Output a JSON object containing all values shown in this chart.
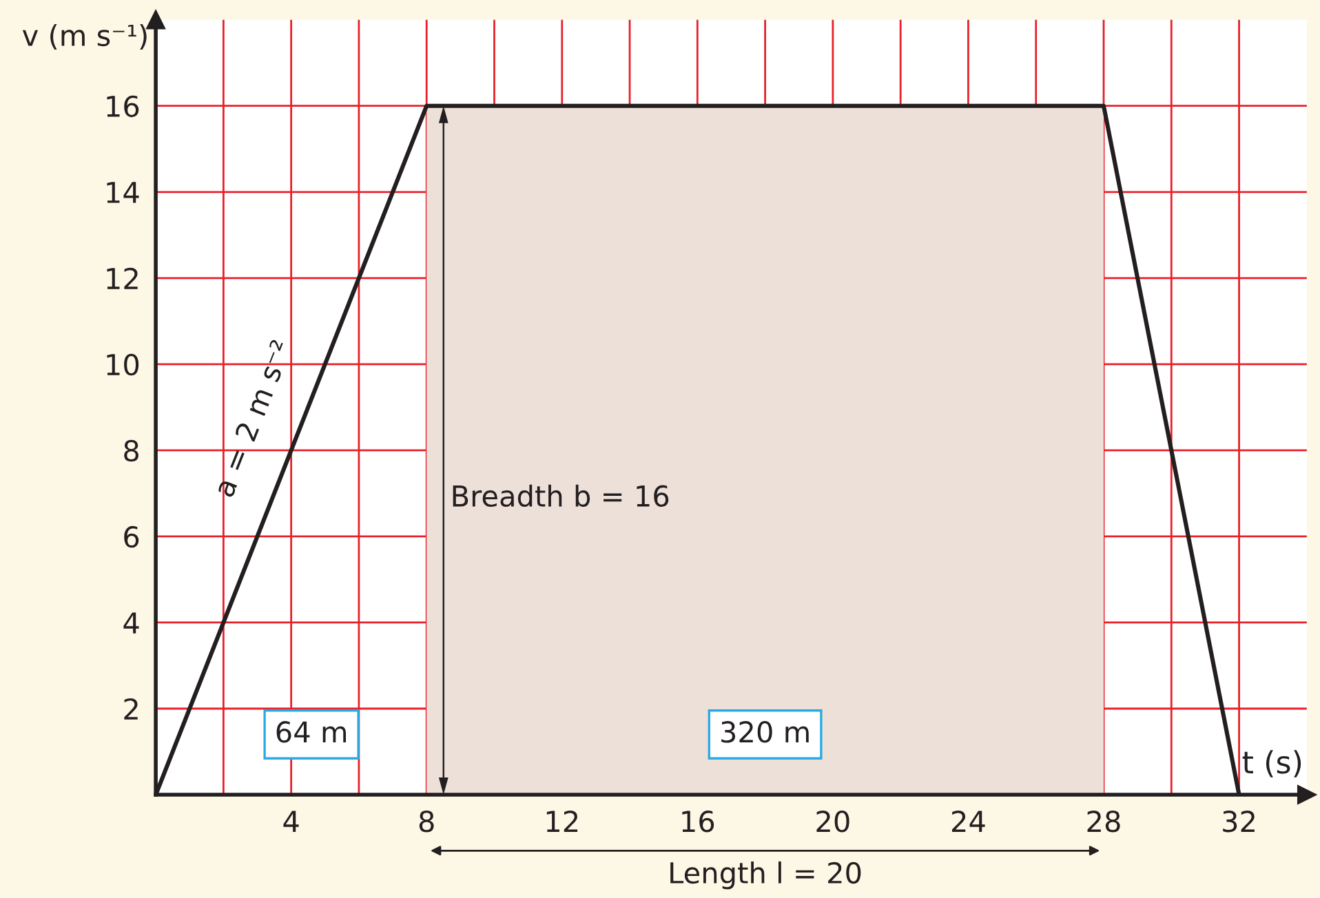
{
  "chart_data": {
    "type": "line",
    "xlabel": "t (s)",
    "ylabel": "v (m s⁻¹)",
    "xlim": [
      0,
      34
    ],
    "ylim": [
      0,
      18
    ],
    "xticks": [
      {
        "value": 2,
        "label": null
      },
      4,
      {
        "value": 6,
        "label": null
      },
      8,
      {
        "value": 10,
        "label": null
      },
      12,
      {
        "value": 14,
        "label": null
      },
      16,
      {
        "value": 18,
        "label": null
      },
      20,
      {
        "value": 22,
        "label": null
      },
      24,
      {
        "value": 26,
        "label": null
      },
      28,
      {
        "value": 30,
        "label": null
      },
      32
    ],
    "yticks": [
      2,
      4,
      6,
      8,
      10,
      12,
      14,
      16
    ],
    "grid": true,
    "series": [
      {
        "type": "area",
        "color": "#ede0d8",
        "x": [
          8,
          28
        ],
        "values": [
          16,
          16
        ]
      },
      {
        "color": "#231f20",
        "x": [
          0,
          8,
          28,
          32
        ],
        "values": [
          0,
          16,
          16,
          0
        ]
      }
    ],
    "annotations": [
      {
        "text": "a = 2 m s⁻²",
        "x": 4,
        "y": 8
      },
      "Breadth b = 16",
      "Length l = 20",
      "64 m",
      "320 m"
    ]
  }
}
